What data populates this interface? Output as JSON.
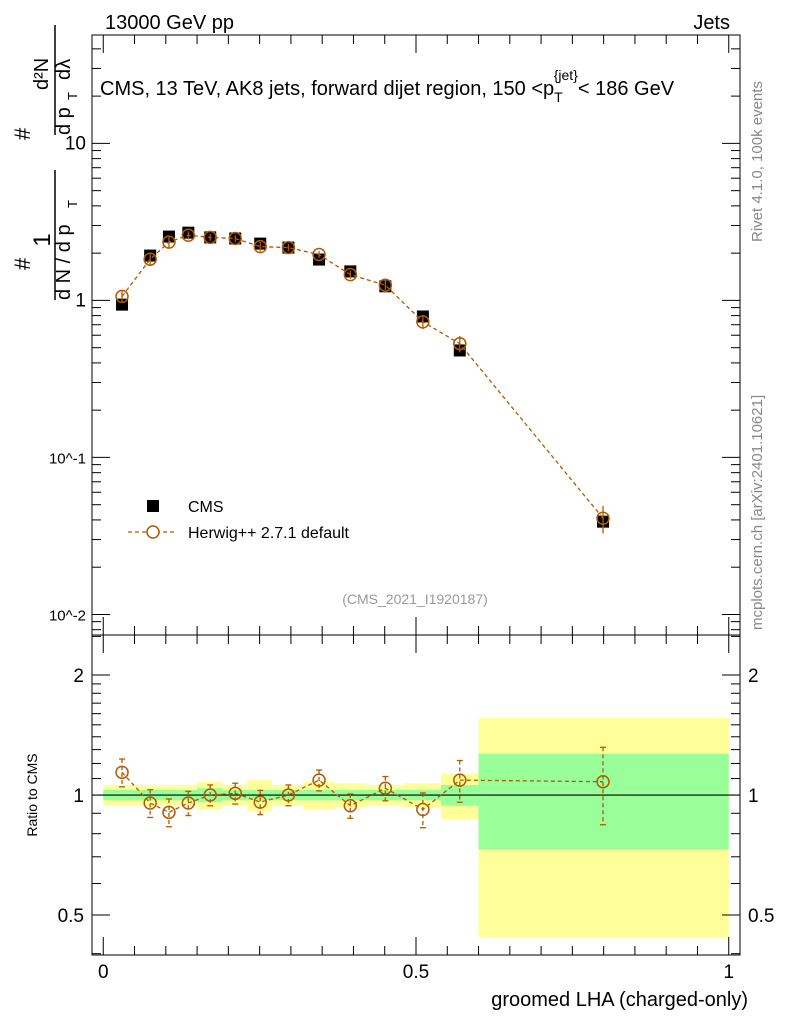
{
  "header": {
    "left": "13000 GeV pp",
    "right": "Jets"
  },
  "side": {
    "rivet": "Rivet 4.1.0,  100k events",
    "mcplots": "mcplots.cern.ch [arXiv:2401.10621]"
  },
  "chart_data": [
    {
      "type": "scatter",
      "title": "CMS, 13 TeV, AK8 jets, forward dijet region, 150 <p_T^{jet}< 186 GeV",
      "title_main": "CMS, 13 TeV, AK8 jets, forward dijet region, 150 <p",
      "title_sub": "T",
      "title_sup": "{jet}",
      "title_end": "< 186 GeV",
      "ylabel": "1/(dN/dp_T) d²N/(dp_T dλ)",
      "yscale": "log",
      "ylim": [
        0.0074,
        49
      ],
      "xlim": [
        -0.018,
        1.018
      ],
      "ytick_labels": [
        "10",
        "1",
        "10^-1",
        "10^-2"
      ],
      "ytick_values": [
        10,
        1,
        0.1,
        0.01
      ],
      "analysis_tag": "(CMS_2021_I1920187)",
      "legend": {
        "placement": "middle-left",
        "entries": [
          "CMS",
          "Herwig++ 2.7.1 default"
        ]
      },
      "x": [
        0.03,
        0.075,
        0.105,
        0.136,
        0.171,
        0.211,
        0.251,
        0.296,
        0.345,
        0.395,
        0.451,
        0.511,
        0.57,
        0.799
      ],
      "series": [
        {
          "name": "CMS",
          "values": [
            0.94,
            1.93,
            2.55,
            2.7,
            2.52,
            2.48,
            2.3,
            2.17,
            1.82,
            1.53,
            1.23,
            0.79,
            0.48,
            0.039
          ],
          "color": "#000000"
        },
        {
          "name": "Herwig++ 2.7.1 default",
          "values": [
            1.06,
            1.83,
            2.35,
            2.6,
            2.52,
            2.48,
            2.2,
            2.17,
            1.96,
            1.46,
            1.25,
            0.73,
            0.53,
            0.041
          ],
          "rel_err": [
            0.08,
            0.08,
            0.08,
            0.06,
            0.05,
            0.05,
            0.07,
            0.05,
            0.05,
            0.06,
            0.07,
            0.1,
            0.12,
            0.2
          ],
          "color": "#b35900"
        }
      ]
    },
    {
      "type": "scatter",
      "ylabel": "Ratio to CMS",
      "xlabel": "groomed LHA (charged-only)",
      "yscale": "log",
      "ylim": [
        0.397,
        2.52
      ],
      "xlim": [
        -0.018,
        1.018
      ],
      "xtick_labels": [
        "0",
        "0.5",
        "1"
      ],
      "xtick_values": [
        0,
        0.5,
        1
      ],
      "ytick_labels": [
        "2",
        "1",
        "0.5"
      ],
      "ytick_values": [
        2,
        1,
        0.5
      ],
      "bin_edges": [
        0,
        0.06,
        0.09,
        0.12,
        0.15,
        0.19,
        0.23,
        0.27,
        0.32,
        0.37,
        0.42,
        0.48,
        0.54,
        0.6,
        1.0
      ],
      "stat_band": [
        0.03,
        0.03,
        0.03,
        0.03,
        0.04,
        0.03,
        0.03,
        0.03,
        0.03,
        0.03,
        0.03,
        0.03,
        0.06,
        0.27
      ],
      "total_band": [
        0.06,
        0.06,
        0.06,
        0.06,
        0.08,
        0.06,
        0.09,
        0.06,
        0.08,
        0.07,
        0.06,
        0.07,
        0.13,
        0.56
      ],
      "series": [
        {
          "name": "Herwig++ 2.7.1 default / CMS",
          "values": [
            1.14,
            0.955,
            0.905,
            0.955,
            1.0,
            1.01,
            0.96,
            1.0,
            1.09,
            0.94,
            1.04,
            0.92,
            1.09,
            1.08
          ],
          "rel_err": [
            0.08,
            0.08,
            0.08,
            0.07,
            0.06,
            0.06,
            0.07,
            0.06,
            0.06,
            0.07,
            0.07,
            0.1,
            0.12,
            0.22
          ]
        }
      ]
    }
  ]
}
